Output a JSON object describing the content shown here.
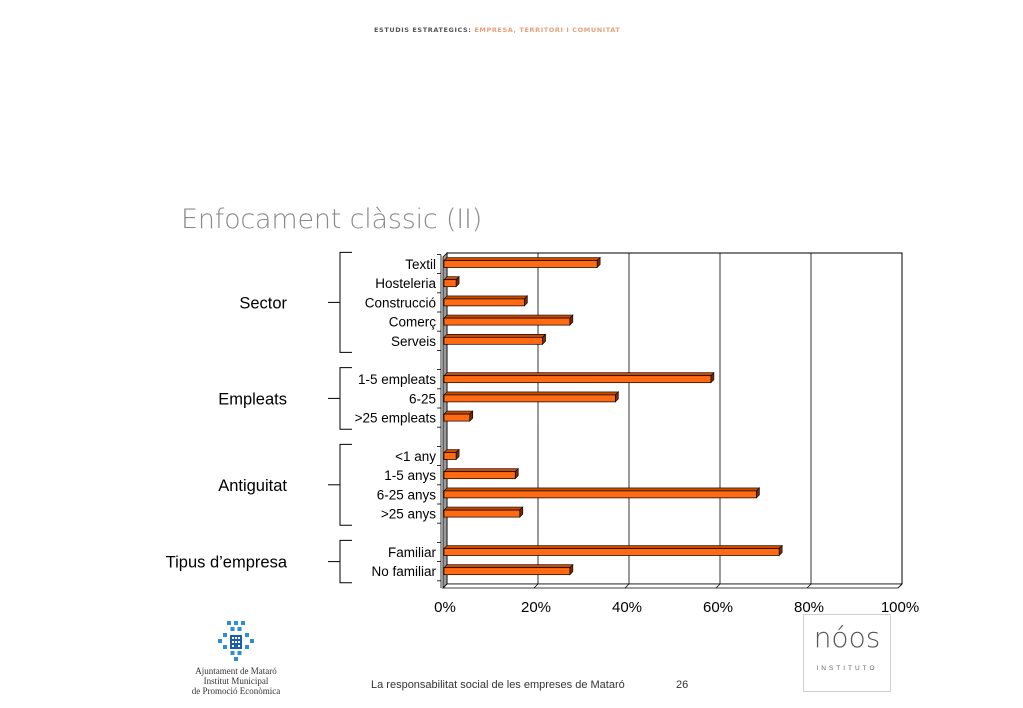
{
  "header": {
    "part1": "ESTUDIS ESTRATEGICS:",
    "part2": " EMPRESA, TERRITORI I COMUNITAT"
  },
  "slide_title": "Enfocament clàssic (II)",
  "footer": {
    "text": "La responsabilitat social de les empreses de Mataró",
    "page": "26"
  },
  "municipal_logo": {
    "line1": "Ajuntament de Mataró",
    "line2": "Institut Municipal",
    "line3": "de Promoció Econòmica"
  },
  "noos_logo": {
    "word": "nóos",
    "sub": "INSTITUTO"
  },
  "colors": {
    "bar_fill": "#ff6a13",
    "bar_edge": "#000000",
    "grid": "#000000",
    "wall": "#9a9a9a"
  },
  "chart_data": {
    "type": "bar",
    "orientation": "horizontal",
    "grid": true,
    "xlim": [
      0,
      100
    ],
    "xticks": [
      "0%",
      "20%",
      "40%",
      "60%",
      "80%",
      "100%"
    ],
    "categories": [
      "Textil",
      "Hosteleria",
      "Construcció",
      "Comerç",
      "Serveis",
      "1-5 empleats",
      "6-25",
      ">25 empleats",
      "<1 any",
      "1-5 anys",
      "6-25 anys",
      ">25 anys",
      "Familiar",
      "No familiar"
    ],
    "values": [
      33,
      2,
      17,
      27,
      21,
      58,
      37,
      5,
      2,
      15,
      68,
      16,
      73,
      27
    ],
    "groups": [
      {
        "label": "Sector",
        "members": [
          "Textil",
          "Hosteleria",
          "Construcció",
          "Comerç",
          "Serveis"
        ]
      },
      {
        "label": "Empleats",
        "members": [
          "1-5 empleats",
          "6-25",
          ">25 empleats"
        ]
      },
      {
        "label": "Antiguitat",
        "members": [
          "<1 any",
          "1-5 anys",
          "6-25 anys",
          ">25 anys"
        ]
      },
      {
        "label": "Tipus d’empresa",
        "members": [
          "Familiar",
          "No familiar"
        ]
      }
    ]
  }
}
